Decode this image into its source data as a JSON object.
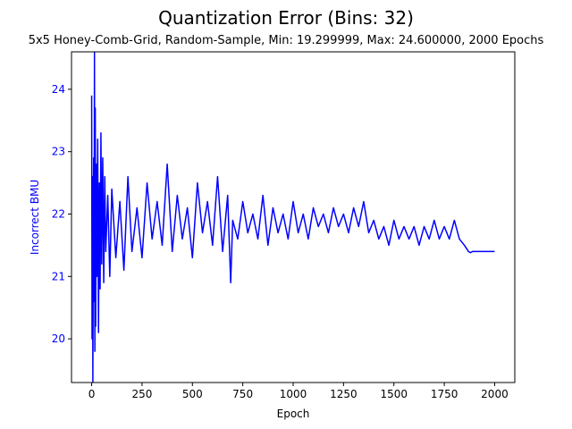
{
  "chart_data": {
    "type": "line",
    "title": "Quantization Error (Bins: 32)",
    "subtitle": "5x5 Honey-Comb-Grid, Random-Sample, Min: 19.299999, Max: 24.600000, 2000 Epochs",
    "xlabel": "Epoch",
    "ylabel": "Incorrect BMU",
    "xlim": [
      -100,
      2100
    ],
    "ylim": [
      19.3,
      24.6
    ],
    "xticks": [
      0,
      250,
      500,
      750,
      1000,
      1250,
      1500,
      1750,
      2000
    ],
    "yticks": [
      20,
      21,
      22,
      23,
      24
    ],
    "grid": false,
    "colors": {
      "series": "#0000ff",
      "ylabel": "#0000ff",
      "axes": "#000000"
    },
    "series": [
      {
        "values_note": "",
        "x": [
          0,
          2,
          4,
          6,
          8,
          10,
          12,
          14,
          16,
          18,
          20,
          23,
          26,
          30,
          34,
          38,
          42,
          46,
          50,
          55,
          60,
          65,
          70,
          80,
          90,
          100,
          120,
          140,
          160,
          180,
          200,
          225,
          250,
          275,
          300,
          325,
          350,
          375,
          400,
          425,
          450,
          475,
          500,
          525,
          550,
          575,
          600,
          625,
          650,
          675,
          690,
          700,
          725,
          750,
          775,
          800,
          825,
          850,
          875,
          900,
          925,
          950,
          975,
          1000,
          1025,
          1050,
          1075,
          1100,
          1125,
          1150,
          1175,
          1200,
          1225,
          1250,
          1275,
          1300,
          1325,
          1350,
          1375,
          1400,
          1425,
          1450,
          1475,
          1500,
          1525,
          1550,
          1575,
          1600,
          1625,
          1650,
          1675,
          1700,
          1725,
          1750,
          1775,
          1800,
          1825,
          1850,
          1860,
          1870,
          1880,
          1890,
          1900,
          2000
        ],
        "y": [
          23.9,
          20.0,
          22.6,
          19.3,
          21.5,
          22.9,
          20.6,
          24.6,
          19.8,
          23.7,
          20.2,
          22.8,
          21.0,
          23.2,
          20.1,
          22.5,
          20.8,
          23.3,
          21.2,
          22.9,
          20.9,
          22.6,
          21.4,
          22.3,
          21.0,
          22.4,
          21.3,
          22.2,
          21.1,
          22.6,
          21.4,
          22.1,
          21.3,
          22.5,
          21.6,
          22.2,
          21.5,
          22.8,
          21.4,
          22.3,
          21.6,
          22.1,
          21.3,
          22.5,
          21.7,
          22.2,
          21.5,
          22.6,
          21.4,
          22.3,
          20.9,
          21.9,
          21.6,
          22.2,
          21.7,
          22.0,
          21.6,
          22.3,
          21.5,
          22.1,
          21.7,
          22.0,
          21.6,
          22.2,
          21.7,
          22.0,
          21.6,
          22.1,
          21.8,
          22.0,
          21.7,
          22.1,
          21.8,
          22.0,
          21.7,
          22.1,
          21.8,
          22.2,
          21.7,
          21.9,
          21.6,
          21.8,
          21.5,
          21.9,
          21.6,
          21.8,
          21.6,
          21.8,
          21.5,
          21.8,
          21.6,
          21.9,
          21.6,
          21.8,
          21.6,
          21.9,
          21.6,
          21.5,
          21.45,
          21.4,
          21.38,
          21.4,
          21.4,
          21.4
        ]
      }
    ]
  }
}
